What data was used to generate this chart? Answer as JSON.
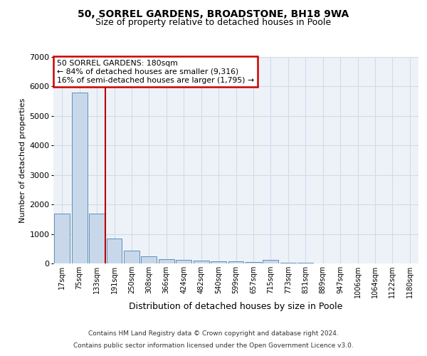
{
  "title1": "50, SORREL GARDENS, BROADSTONE, BH18 9WA",
  "title2": "Size of property relative to detached houses in Poole",
  "xlabel": "Distribution of detached houses by size in Poole",
  "ylabel": "Number of detached properties",
  "annotation_line1": "50 SORREL GARDENS: 180sqm",
  "annotation_line2": "← 84% of detached houses are smaller (9,316)",
  "annotation_line3": "16% of semi-detached houses are larger (1,795) →",
  "footer_line1": "Contains HM Land Registry data © Crown copyright and database right 2024.",
  "footer_line2": "Contains public sector information licensed under the Open Government Licence v3.0.",
  "bar_color": "#c8d8ea",
  "bar_edge_color": "#6090b8",
  "grid_color": "#d0dcea",
  "annotation_box_edge_color": "#cc0000",
  "property_line_color": "#bb0000",
  "categories": [
    "17sqm",
    "75sqm",
    "133sqm",
    "191sqm",
    "250sqm",
    "308sqm",
    "366sqm",
    "424sqm",
    "482sqm",
    "540sqm",
    "599sqm",
    "657sqm",
    "715sqm",
    "773sqm",
    "831sqm",
    "889sqm",
    "947sqm",
    "1006sqm",
    "1064sqm",
    "1122sqm",
    "1180sqm"
  ],
  "values": [
    1700,
    5800,
    1700,
    850,
    430,
    230,
    150,
    110,
    85,
    70,
    65,
    60,
    115,
    20,
    15,
    12,
    10,
    8,
    6,
    5,
    4
  ],
  "ylim": [
    0,
    7000
  ],
  "yticks": [
    0,
    1000,
    2000,
    3000,
    4000,
    5000,
    6000,
    7000
  ],
  "property_line_x": 2.5,
  "plot_bg_color": "#edf2f8",
  "fig_bg_color": "#ffffff"
}
